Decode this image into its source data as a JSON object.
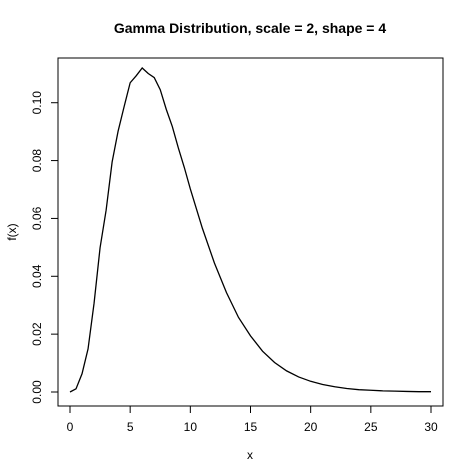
{
  "chart_data": {
    "type": "line",
    "title": "Gamma Distribution, scale = 2, shape = 4",
    "xlabel": "x",
    "ylabel": "f(x)",
    "xlim": [
      0,
      30
    ],
    "ylim": [
      0,
      0.112
    ],
    "xticks": [
      0,
      5,
      10,
      15,
      20,
      25,
      30
    ],
    "xtick_labels": [
      "0",
      "5",
      "10",
      "15",
      "20",
      "25",
      "30"
    ],
    "yticks": [
      0.0,
      0.02,
      0.04,
      0.06,
      0.08,
      0.1
    ],
    "ytick_labels": [
      "0.00",
      "0.02",
      "0.04",
      "0.06",
      "0.08",
      "0.10"
    ],
    "grid": false,
    "legend": "none",
    "series": [
      {
        "x": [
          0,
          0.5,
          1,
          1.5,
          2,
          2.5,
          3,
          3.5,
          4,
          4.5,
          5,
          5.5,
          6,
          6.5,
          7,
          7.5,
          8,
          8.5,
          9,
          9.5,
          10,
          11,
          12,
          13,
          14,
          15,
          16,
          17,
          18,
          19,
          20,
          21,
          22,
          23,
          24,
          25,
          26,
          27,
          28,
          29,
          30
        ],
        "y": [
          0,
          0.0011,
          0.0063,
          0.0149,
          0.0307,
          0.0499,
          0.0628,
          0.0795,
          0.0902,
          0.0987,
          0.1069,
          0.1093,
          0.112,
          0.1101,
          0.1087,
          0.1045,
          0.0977,
          0.0918,
          0.0844,
          0.0776,
          0.0702,
          0.0566,
          0.0446,
          0.0344,
          0.0258,
          0.0194,
          0.0141,
          0.0102,
          0.0073,
          0.0052,
          0.0037,
          0.0026,
          0.0018,
          0.0012,
          0.0008,
          0.0006,
          0.0004,
          0.0003,
          0.0002,
          0.0001,
          0.0001
        ]
      }
    ],
    "line_color": "#000000"
  }
}
